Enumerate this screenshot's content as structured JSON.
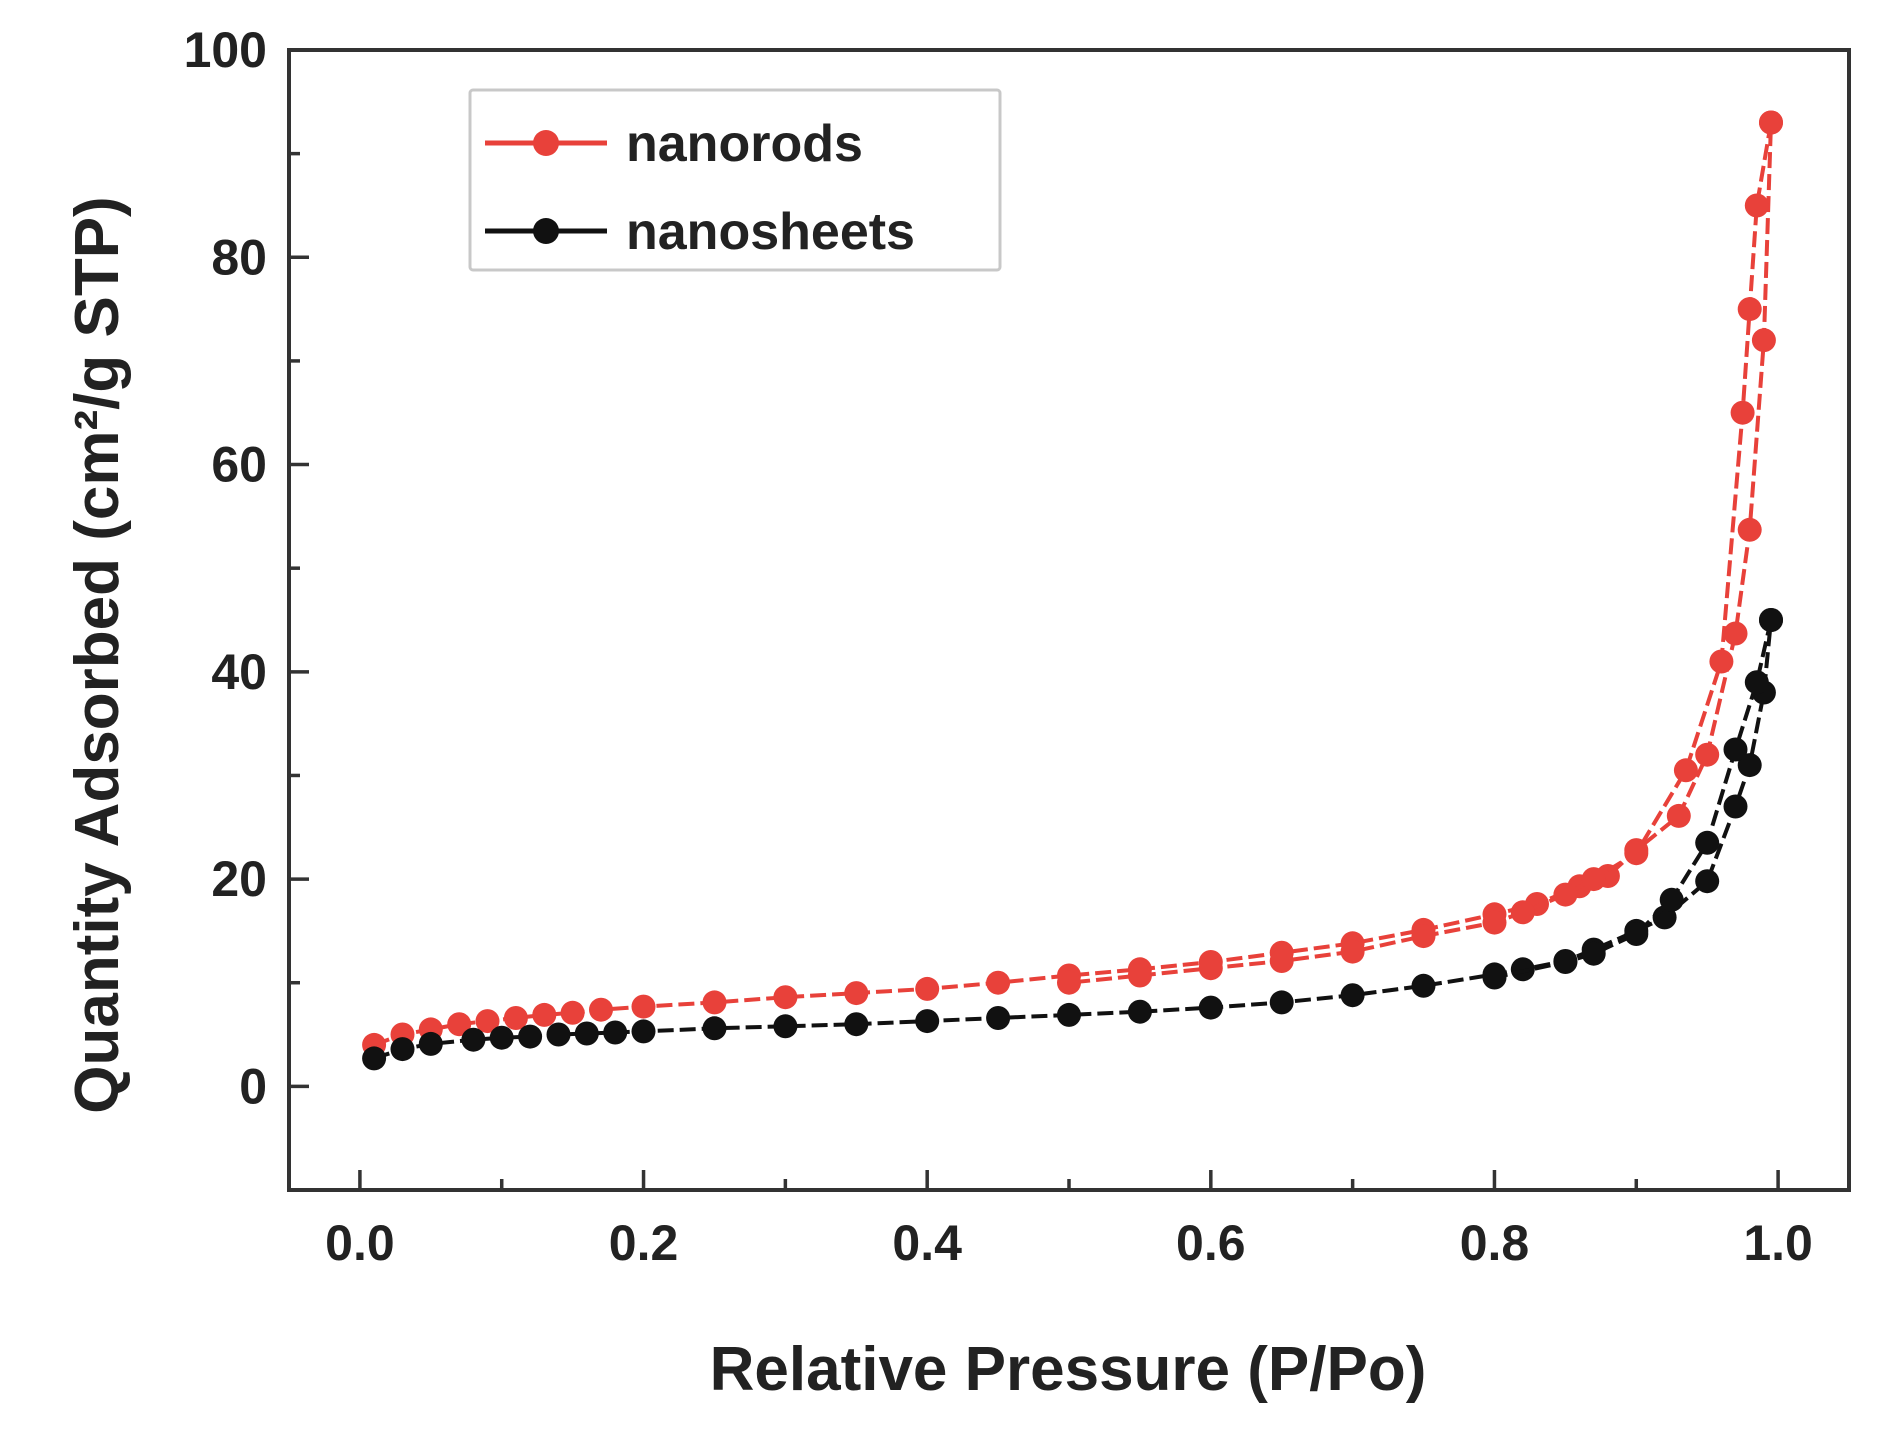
{
  "chart_data": {
    "type": "line",
    "xlabel": "Relative Pressure (P/Po)",
    "ylabel": "Quantity Adsorbed (cm²/g STP)",
    "xlim": [
      -0.05,
      1.05
    ],
    "ylim": [
      -10,
      100
    ],
    "x_ticks": [
      "0.0",
      "0.2",
      "0.4",
      "0.6",
      "0.8",
      "1.0"
    ],
    "y_ticks": [
      "0",
      "20",
      "40",
      "60",
      "80",
      "100"
    ],
    "grid": false,
    "legend_position": "top-left",
    "series": [
      {
        "name": "nanorods",
        "color": "#e8413a",
        "marker": "circle",
        "adsorption": [
          [
            0.01,
            4.0
          ],
          [
            0.03,
            5.0
          ],
          [
            0.05,
            5.5
          ],
          [
            0.07,
            6.0
          ],
          [
            0.09,
            6.3
          ],
          [
            0.11,
            6.6
          ],
          [
            0.13,
            6.9
          ],
          [
            0.15,
            7.1
          ],
          [
            0.17,
            7.4
          ],
          [
            0.2,
            7.7
          ],
          [
            0.25,
            8.1
          ],
          [
            0.3,
            8.6
          ],
          [
            0.35,
            9.0
          ],
          [
            0.4,
            9.4
          ],
          [
            0.45,
            10.0
          ],
          [
            0.5,
            10.7
          ],
          [
            0.55,
            11.3
          ],
          [
            0.6,
            12.0
          ],
          [
            0.65,
            12.9
          ],
          [
            0.7,
            13.8
          ],
          [
            0.75,
            15.1
          ],
          [
            0.8,
            16.6
          ],
          [
            0.83,
            17.6
          ],
          [
            0.86,
            19.3
          ],
          [
            0.88,
            20.3
          ],
          [
            0.9,
            22.8
          ],
          [
            0.93,
            26.1
          ],
          [
            0.95,
            32.0
          ],
          [
            0.97,
            43.7
          ],
          [
            0.98,
            53.7
          ],
          [
            0.99,
            72.0
          ],
          [
            0.995,
            93.0
          ]
        ],
        "desorption": [
          [
            0.995,
            93.0
          ],
          [
            0.985,
            85.0
          ],
          [
            0.98,
            75.0
          ],
          [
            0.975,
            65.0
          ],
          [
            0.96,
            41.0
          ],
          [
            0.935,
            30.5
          ],
          [
            0.9,
            22.5
          ],
          [
            0.87,
            20.0
          ],
          [
            0.85,
            18.5
          ],
          [
            0.82,
            16.8
          ],
          [
            0.8,
            15.8
          ],
          [
            0.75,
            14.5
          ],
          [
            0.7,
            13.0
          ],
          [
            0.65,
            12.1
          ],
          [
            0.6,
            11.4
          ],
          [
            0.55,
            10.7
          ],
          [
            0.5,
            10.0
          ]
        ]
      },
      {
        "name": "nanosheets",
        "color": "#111111",
        "marker": "circle",
        "adsorption": [
          [
            0.01,
            2.7
          ],
          [
            0.03,
            3.6
          ],
          [
            0.05,
            4.1
          ],
          [
            0.08,
            4.5
          ],
          [
            0.1,
            4.7
          ],
          [
            0.12,
            4.8
          ],
          [
            0.14,
            5.0
          ],
          [
            0.16,
            5.1
          ],
          [
            0.18,
            5.2
          ],
          [
            0.2,
            5.3
          ],
          [
            0.25,
            5.6
          ],
          [
            0.3,
            5.8
          ],
          [
            0.35,
            6.0
          ],
          [
            0.4,
            6.3
          ],
          [
            0.45,
            6.6
          ],
          [
            0.5,
            6.9
          ],
          [
            0.55,
            7.2
          ],
          [
            0.6,
            7.6
          ],
          [
            0.65,
            8.1
          ],
          [
            0.7,
            8.8
          ],
          [
            0.75,
            9.7
          ],
          [
            0.8,
            10.8
          ],
          [
            0.82,
            11.3
          ],
          [
            0.85,
            12.1
          ],
          [
            0.87,
            13.2
          ],
          [
            0.9,
            15.0
          ],
          [
            0.92,
            16.3
          ],
          [
            0.95,
            19.8
          ],
          [
            0.97,
            27.0
          ],
          [
            0.98,
            31.0
          ],
          [
            0.99,
            38.0
          ],
          [
            0.995,
            45.0
          ]
        ],
        "desorption": [
          [
            0.995,
            45.0
          ],
          [
            0.985,
            39.0
          ],
          [
            0.97,
            32.5
          ],
          [
            0.95,
            23.5
          ],
          [
            0.925,
            18.0
          ],
          [
            0.9,
            14.7
          ],
          [
            0.87,
            12.8
          ],
          [
            0.85,
            12.0
          ],
          [
            0.8,
            10.5
          ]
        ]
      }
    ]
  }
}
